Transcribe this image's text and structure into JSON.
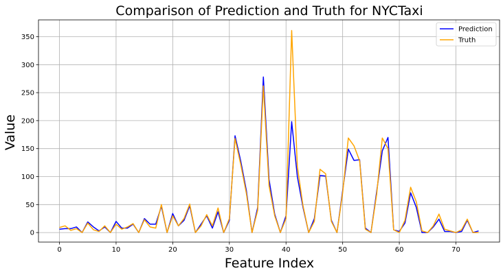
{
  "chart_data": {
    "type": "line",
    "title": "Comparison of Prediction and Truth for NYCTaxi",
    "xlabel": "Feature Index",
    "ylabel": "Value",
    "xlim": [
      -3.7,
      77.7
    ],
    "ylim": [
      -17,
      380
    ],
    "xticks": [
      0,
      10,
      20,
      30,
      40,
      50,
      60,
      70
    ],
    "yticks": [
      0,
      50,
      100,
      150,
      200,
      250,
      300,
      350
    ],
    "grid": true,
    "legend_position": "top-right",
    "series": [
      {
        "name": "Prediction",
        "color": "#0000ff",
        "values": [
          6,
          7,
          7,
          10,
          0,
          19,
          10,
          3,
          10,
          0,
          20,
          8,
          8,
          15,
          0,
          25,
          15,
          15,
          47,
          0,
          34,
          12,
          22,
          48,
          0,
          15,
          30,
          8,
          37,
          0,
          22,
          173,
          128,
          75,
          0,
          45,
          278,
          95,
          33,
          0,
          30,
          198,
          100,
          45,
          0,
          25,
          102,
          101,
          22,
          0,
          75,
          149,
          129,
          130,
          8,
          0,
          73,
          146,
          170,
          5,
          2,
          17,
          71,
          45,
          0,
          0,
          10,
          24,
          2,
          2,
          0,
          2,
          22,
          0,
          3
        ]
      },
      {
        "name": "Truth",
        "color": "#ffa500",
        "values": [
          9,
          12,
          4,
          7,
          0,
          17,
          5,
          2,
          12,
          0,
          15,
          6,
          10,
          16,
          0,
          23,
          10,
          8,
          50,
          0,
          30,
          12,
          25,
          51,
          0,
          12,
          32,
          12,
          44,
          0,
          25,
          168,
          122,
          70,
          0,
          40,
          262,
          84,
          30,
          0,
          25,
          361,
          118,
          48,
          0,
          20,
          113,
          105,
          20,
          0,
          71,
          169,
          155,
          128,
          6,
          0,
          68,
          169,
          150,
          5,
          0,
          22,
          81,
          55,
          3,
          0,
          12,
          33,
          6,
          3,
          0,
          5,
          24,
          0,
          0
        ]
      }
    ]
  }
}
